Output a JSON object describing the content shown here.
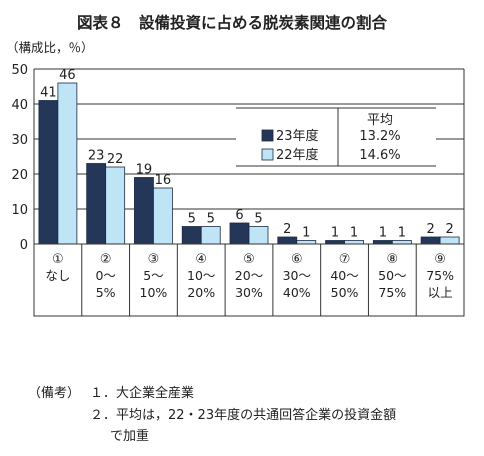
{
  "colors": {
    "series_2023": "#243758",
    "series_2022": "#bfe4f6",
    "grid": "#333333",
    "text": "#222222"
  },
  "chart_data": {
    "type": "bar",
    "title": "図表８　設備投資に占める脱炭素関連の割合",
    "ylabel": "（構成比，％）",
    "ylim": [
      0,
      50
    ],
    "yticks": [
      "0",
      "10",
      "20",
      "30",
      "40",
      "50"
    ],
    "grid": true,
    "categories": [
      {
        "num": "①",
        "line1": "なし",
        "line2": ""
      },
      {
        "num": "②",
        "line1": "0～",
        "line2": "5%"
      },
      {
        "num": "③",
        "line1": "5～",
        "line2": "10%"
      },
      {
        "num": "④",
        "line1": "10～",
        "line2": "20%"
      },
      {
        "num": "⑤",
        "line1": "20～",
        "line2": "30%"
      },
      {
        "num": "⑥",
        "line1": "30～",
        "line2": "40%"
      },
      {
        "num": "⑦",
        "line1": "40～",
        "line2": "50%"
      },
      {
        "num": "⑧",
        "line1": "50～",
        "line2": "75%"
      },
      {
        "num": "⑨",
        "line1": "75%",
        "line2": "以上"
      }
    ],
    "series": [
      {
        "name": "23年度",
        "values": [
          41,
          23,
          19,
          5,
          6,
          2,
          1,
          1,
          2
        ]
      },
      {
        "name": "22年度",
        "values": [
          46,
          22,
          16,
          5,
          5,
          1,
          1,
          1,
          2
        ]
      }
    ],
    "legend": {
      "position": "top-right",
      "header": "平均",
      "averages": [
        "13.2%",
        "14.6%"
      ]
    }
  },
  "notes": {
    "label": "（備考）",
    "items": [
      "１．大企業全産業",
      "２．平均は，22・23年度の共通回答企業の投資金額"
    ],
    "continuation": "で加重"
  }
}
